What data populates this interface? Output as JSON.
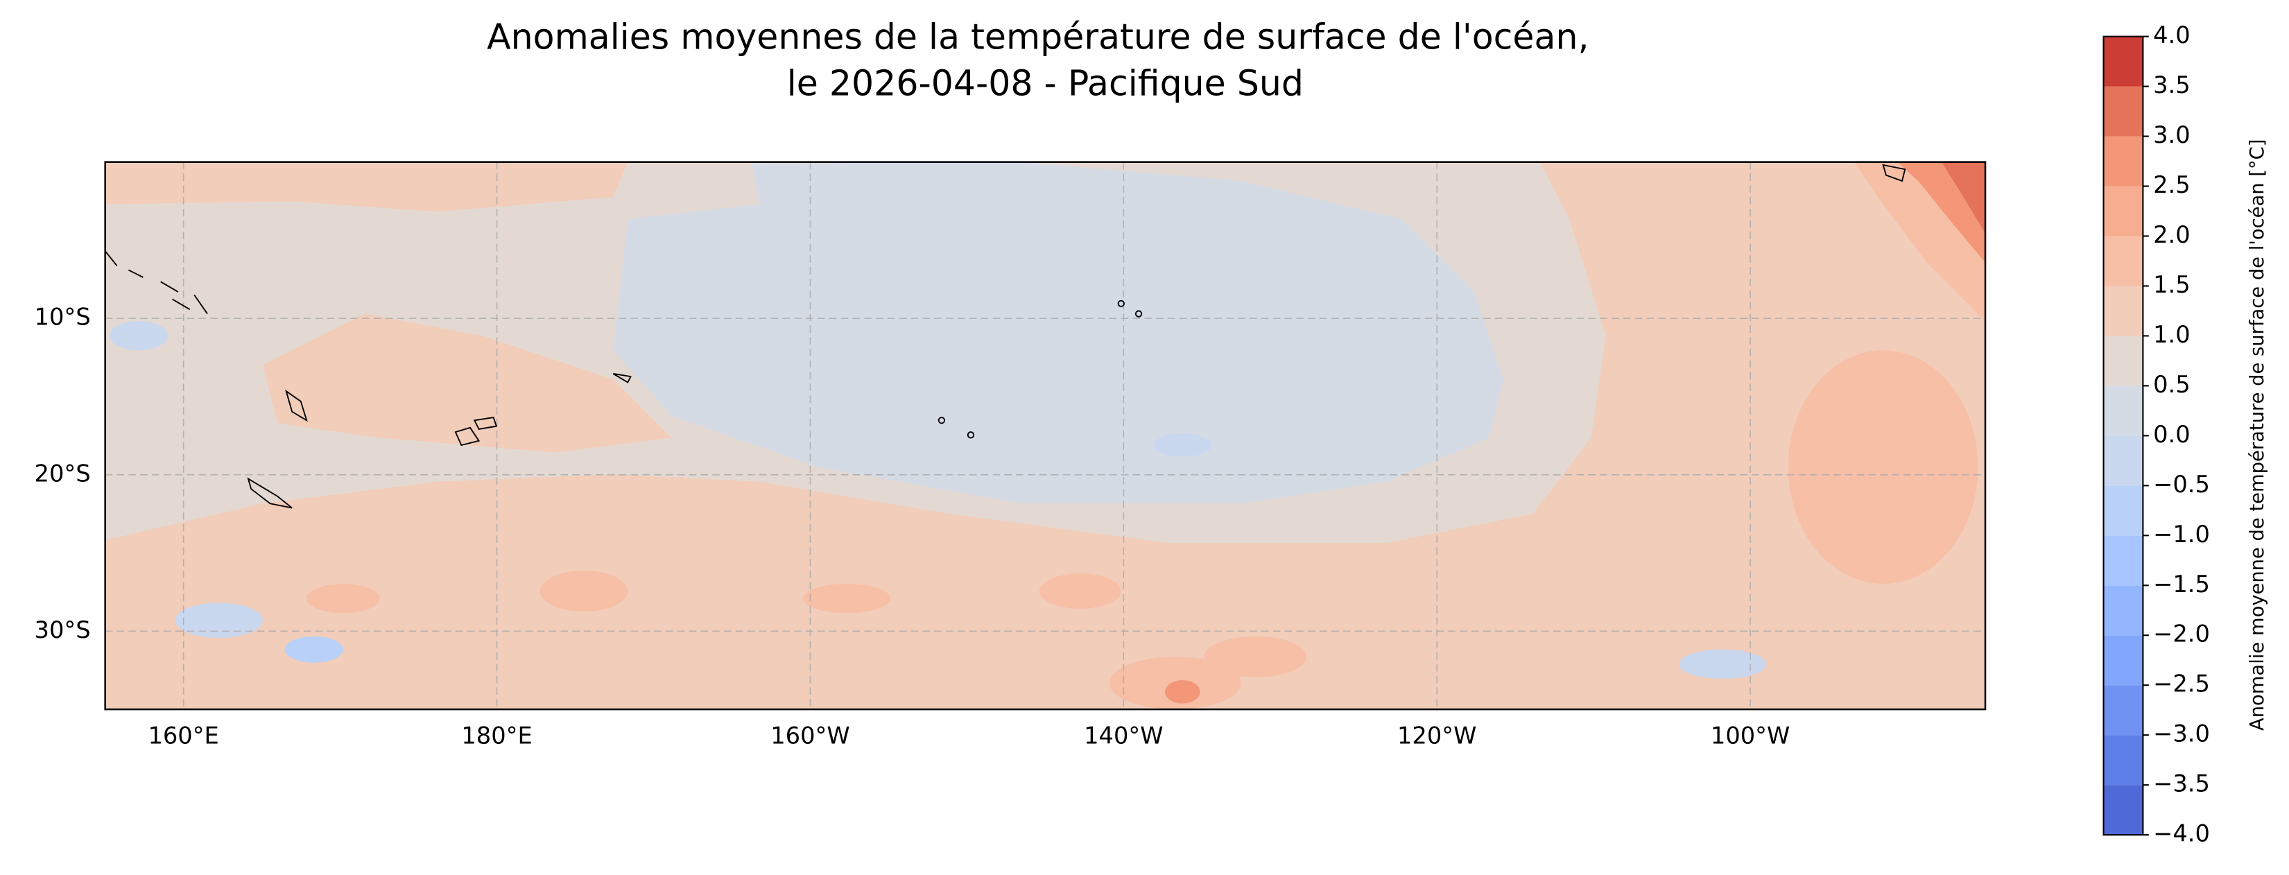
{
  "chart_data": {
    "type": "contour_map",
    "title": [
      "Anomalies moyennes de la température de surface de l'océan,",
      "le 2026-04-08 - Pacifique Sud"
    ],
    "xlim": [
      155,
      275
    ],
    "xticks": [
      {
        "value": 160,
        "label": "160°E"
      },
      {
        "value": 180,
        "label": "180°E"
      },
      {
        "value": 200,
        "label": "160°W"
      },
      {
        "value": 220,
        "label": "140°W"
      },
      {
        "value": 240,
        "label": "120°W"
      },
      {
        "value": 260,
        "label": "100°W"
      }
    ],
    "ylim": [
      -35,
      0
    ],
    "yticks": [
      {
        "value": -10,
        "label": "10°S"
      },
      {
        "value": -20,
        "label": "20°S"
      },
      {
        "value": -30,
        "label": "30°S"
      }
    ],
    "grid": true,
    "colorbar": {
      "label": "Anomalie moyenne de température de surface de l'océan [°C]",
      "lim": [
        -4,
        4
      ],
      "ticks": [
        {
          "value": -4,
          "label": "−4.0"
        },
        {
          "value": -3.5,
          "label": "−3.5"
        },
        {
          "value": -3,
          "label": "−3.0"
        },
        {
          "value": -2.5,
          "label": "−2.5"
        },
        {
          "value": -2,
          "label": "−2.0"
        },
        {
          "value": -1.5,
          "label": "−1.5"
        },
        {
          "value": -1,
          "label": "−1.0"
        },
        {
          "value": -0.5,
          "label": "−0.5"
        },
        {
          "value": 0,
          "label": "0.0"
        },
        {
          "value": 0.5,
          "label": "0.5"
        },
        {
          "value": 1,
          "label": "1.0"
        },
        {
          "value": 1.5,
          "label": "1.5"
        },
        {
          "value": 2,
          "label": "2.0"
        },
        {
          "value": 2.5,
          "label": "2.5"
        },
        {
          "value": 3,
          "label": "3.0"
        },
        {
          "value": 3.5,
          "label": "3.5"
        },
        {
          "value": 4,
          "label": "4.0"
        }
      ],
      "colors": [
        "#4f69d9",
        "#5f7fe8",
        "#7092f3",
        "#82a6fb",
        "#94b6ff",
        "#a7c5fe",
        "#b9d0f9",
        "#cad8ef",
        "#d5dbe5",
        "#e4d9d2",
        "#f1cdba",
        "#f6bfa6",
        "#f7ad90",
        "#f39778",
        "#e5735a",
        "#cc3d36"
      ]
    }
  }
}
